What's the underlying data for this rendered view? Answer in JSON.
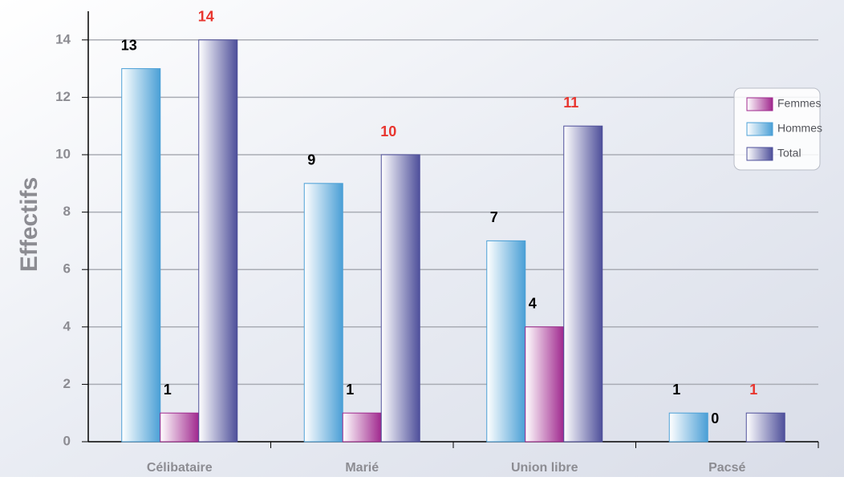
{
  "chart_data": {
    "type": "bar",
    "y_label": "Effectifs",
    "categories": [
      "Célibataire",
      "Marié",
      "Union libre",
      "Pacsé"
    ],
    "series": [
      {
        "name": "Hommes",
        "color": "#4a9fd6",
        "label_color": "#000000",
        "values": [
          13,
          9,
          7,
          1
        ]
      },
      {
        "name": "Femmes",
        "color": "#a0288e",
        "label_color": "#000000",
        "values": [
          1,
          1,
          4,
          0
        ]
      },
      {
        "name": "Total",
        "color": "#4e4f9a",
        "label_color": "#e8352e",
        "values": [
          14,
          10,
          11,
          1
        ]
      }
    ],
    "legend_order": [
      1,
      0,
      2
    ],
    "legend": "upper right",
    "ylim": [
      0,
      15
    ],
    "yticks": [
      0,
      2,
      4,
      6,
      8,
      10,
      12,
      14
    ],
    "grid": true
  }
}
